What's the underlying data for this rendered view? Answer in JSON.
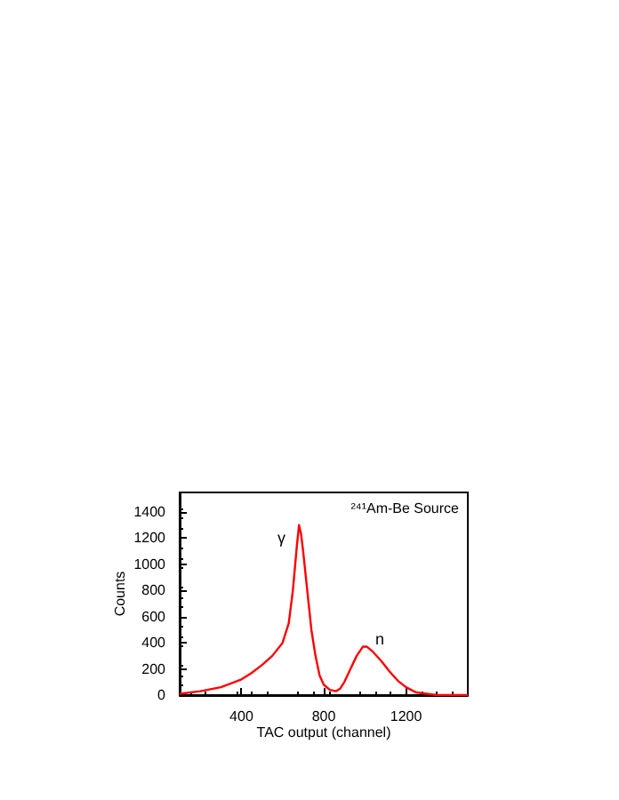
{
  "chart_data": {
    "type": "line",
    "xlabel": "TAC output (channel)",
    "ylabel": "Counts",
    "annotations": [
      "γ",
      "n",
      "²⁴¹Am-Be Source"
    ],
    "x": [
      100,
      200,
      300,
      400,
      450,
      500,
      550,
      600,
      630,
      650,
      670,
      680,
      690,
      700,
      720,
      740,
      760,
      780,
      800,
      830,
      860,
      880,
      900,
      930,
      960,
      990,
      1010,
      1040,
      1080,
      1120,
      1160,
      1200,
      1250,
      1300,
      1350,
      1400,
      1500
    ],
    "series": [
      {
        "color": "#ff0000",
        "values": [
          10,
          30,
          60,
          120,
          170,
          230,
          300,
          400,
          550,
          800,
          1150,
          1300,
          1230,
          1100,
          800,
          500,
          300,
          150,
          80,
          40,
          30,
          50,
          100,
          200,
          300,
          370,
          370,
          330,
          260,
          180,
          110,
          60,
          20,
          10,
          0,
          0,
          0
        ]
      }
    ],
    "xlim": [
      100,
      1500
    ],
    "xticks": [
      400,
      800,
      1200
    ],
    "ylim": [
      0,
      1550
    ],
    "yticks": [
      0,
      200,
      400,
      600,
      800,
      1000,
      1200,
      1400
    ],
    "grid": false,
    "marker": "none",
    "line_style": "solid"
  }
}
